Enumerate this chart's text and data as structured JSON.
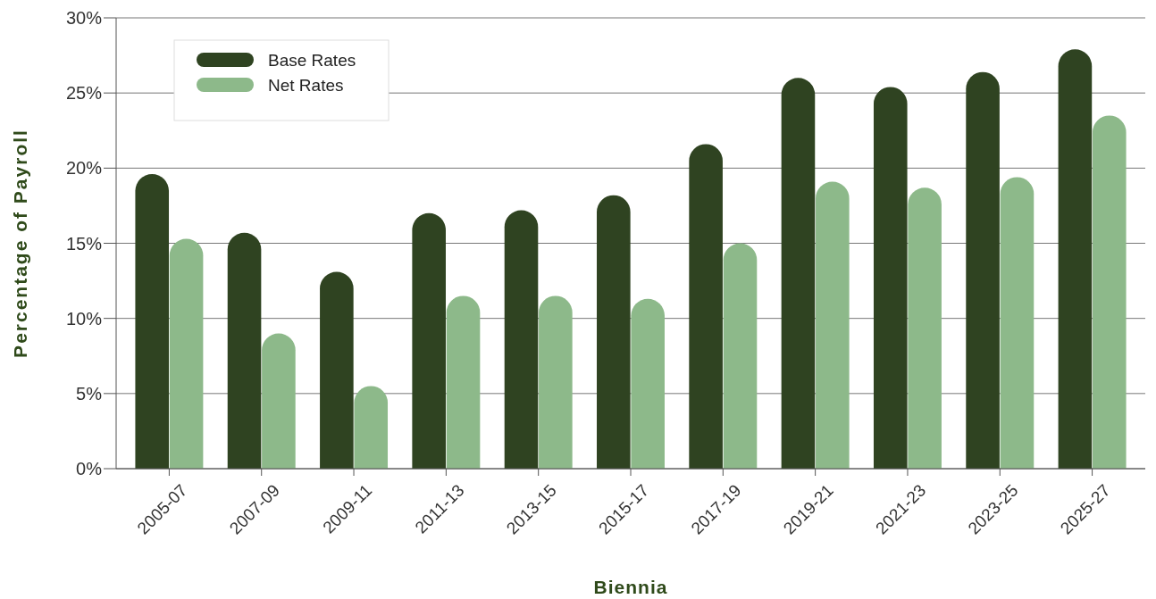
{
  "chart_data": {
    "type": "bar",
    "xlabel": "Biennia",
    "ylabel": "Percentage of Payroll",
    "categories": [
      "2005-07",
      "2007-09",
      "2009-11",
      "2011-13",
      "2013-15",
      "2015-17",
      "2017-19",
      "2019-21",
      "2021-23",
      "2023-25",
      "2025-27"
    ],
    "series": [
      {
        "name": "Base Rates",
        "color": "#2f4321",
        "values": [
          19.6,
          15.7,
          13.1,
          17.0,
          17.2,
          18.2,
          21.6,
          26.0,
          25.4,
          26.4,
          27.9
        ]
      },
      {
        "name": "Net Rates",
        "color": "#8db98a",
        "values": [
          15.3,
          9.0,
          5.5,
          11.5,
          11.5,
          11.3,
          15.0,
          19.1,
          18.7,
          19.4,
          23.5
        ]
      }
    ],
    "ylim": [
      0,
      30
    ],
    "yticks": [
      {
        "value": 0,
        "label": "0%"
      },
      {
        "value": 5,
        "label": "5%"
      },
      {
        "value": 10,
        "label": "10%"
      },
      {
        "value": 15,
        "label": "15%"
      },
      {
        "value": 20,
        "label": "20%"
      },
      {
        "value": 25,
        "label": "25%"
      },
      {
        "value": 30,
        "label": "30%"
      }
    ],
    "grid": "y",
    "legend": "top left"
  }
}
